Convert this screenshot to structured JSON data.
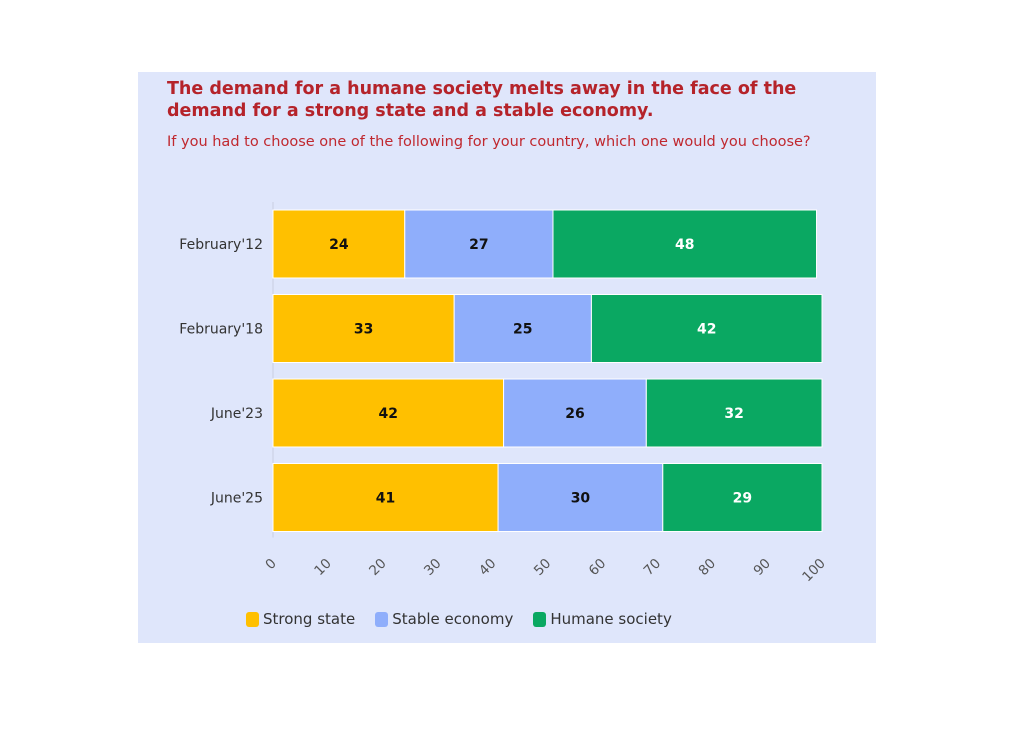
{
  "chart_data": {
    "type": "bar",
    "orientation": "horizontal",
    "stacked": true,
    "title": "The demand for a humane society melts away in the face of the demand for a strong state and a stable economy.",
    "subtitle": "If you had to choose one of the following for your country, which one would you choose?",
    "categories": [
      "February'12",
      "February'18",
      "June'23",
      "June'25"
    ],
    "series": [
      {
        "name": "Strong state",
        "color": "#ffc000",
        "label_color": "#111111",
        "values": [
          24,
          33,
          42,
          41
        ]
      },
      {
        "name": "Stable economy",
        "color": "#8faefb",
        "label_color": "#111111",
        "values": [
          27,
          25,
          26,
          30
        ]
      },
      {
        "name": "Humane society",
        "color": "#0aa862",
        "label_color": "#ffffff",
        "values": [
          48,
          42,
          32,
          29
        ]
      }
    ],
    "xlim": [
      0,
      100
    ],
    "xticks": [
      0,
      10,
      20,
      30,
      40,
      50,
      60,
      70,
      80,
      90,
      100
    ],
    "xlabel": "",
    "ylabel": "",
    "grid": false,
    "legend_position": "bottom-left"
  }
}
